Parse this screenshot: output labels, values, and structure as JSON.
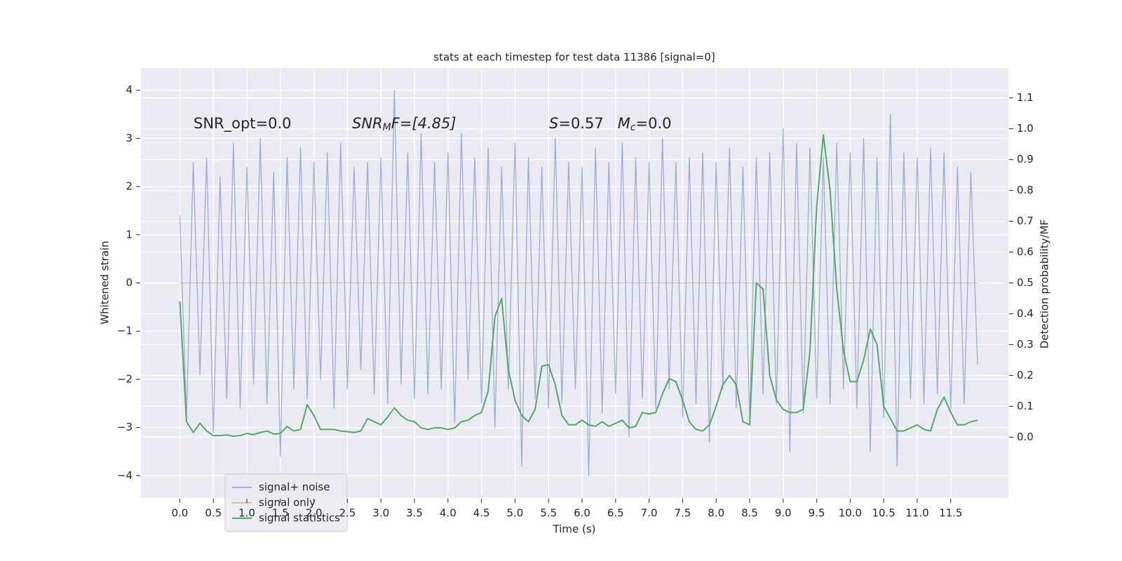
{
  "chart_data": {
    "type": "line",
    "title": "stats at each timestep for test data 11386 [signal=0]",
    "xlabel": "Time (s)",
    "ylabel": "Whitened strain",
    "y2label": "Detection probability/MF",
    "annotations": [
      [
        "SNR_opt=0.0"
      ],
      [
        "SNR",
        "M",
        "F=[4.85]"
      ],
      [
        "S",
        "=0.57",
        "M",
        "c",
        "=0.0"
      ]
    ],
    "xlim": [
      -0.58,
      12.36
    ],
    "ylim": [
      -4.46,
      4.46
    ],
    "y2lim": [
      -0.197,
      1.197
    ],
    "xticks": [
      {
        "value": 0,
        "label": "0.0"
      },
      0.5,
      {
        "value": 1,
        "label": "1.0"
      },
      1.5,
      {
        "value": 2,
        "label": "2.0"
      },
      2.5,
      {
        "value": 3,
        "label": "3.0"
      },
      3.5,
      {
        "value": 4,
        "label": "4.0"
      },
      4.5,
      {
        "value": 5,
        "label": "5.0"
      },
      5.5,
      {
        "value": 6,
        "label": "6.0"
      },
      6.5,
      {
        "value": 7,
        "label": "7.0"
      },
      7.5,
      {
        "value": 8,
        "label": "8.0"
      },
      8.5,
      {
        "value": 9,
        "label": "9.0"
      },
      9.5,
      {
        "value": 10,
        "label": "10.0"
      },
      10.5,
      {
        "value": 11,
        "label": "11.0"
      },
      11.5
    ],
    "yticks": [
      {
        "value": -4,
        "label": "−4"
      },
      {
        "value": -3,
        "label": "−3"
      },
      {
        "value": -2,
        "label": "−2"
      },
      {
        "value": -1,
        "label": "−1"
      },
      0,
      1,
      2,
      3,
      4
    ],
    "y2ticks": [
      {
        "value": 0,
        "label": "0.0"
      },
      0.1,
      0.2,
      0.3,
      0.4,
      0.5,
      0.6,
      0.7,
      0.8,
      0.9,
      {
        "value": 1,
        "label": "1.0"
      },
      1.1
    ],
    "grid": true,
    "legend": "lower left",
    "x": [
      0,
      0.1,
      0.2,
      0.3,
      0.4,
      0.5,
      0.6,
      0.7,
      0.8,
      0.9,
      1,
      1.1,
      1.2,
      1.3,
      1.4,
      1.5,
      1.6,
      1.7,
      1.8,
      1.9,
      2,
      2.1,
      2.2,
      2.3,
      2.4,
      2.5,
      2.6,
      2.7,
      2.8,
      2.9,
      3,
      3.1,
      3.2,
      3.3,
      3.4,
      3.5,
      3.6,
      3.7,
      3.8,
      3.9,
      4,
      4.1,
      4.2,
      4.3,
      4.4,
      4.5,
      4.6,
      4.7,
      4.8,
      4.9,
      5,
      5.1,
      5.2,
      5.3,
      5.4,
      5.5,
      5.6,
      5.7,
      5.8,
      5.9,
      6,
      6.1,
      6.2,
      6.3,
      6.4,
      6.5,
      6.6,
      6.7,
      6.8,
      6.9,
      7,
      7.1,
      7.2,
      7.3,
      7.4,
      7.5,
      7.6,
      7.7,
      7.8,
      7.9,
      8,
      8.1,
      8.2,
      8.3,
      8.4,
      8.5,
      8.6,
      8.7,
      8.8,
      8.9,
      9,
      9.1,
      9.2,
      9.3,
      9.4,
      9.5,
      9.6,
      9.7,
      9.8,
      9.9,
      10,
      10.1,
      10.2,
      10.3,
      10.4,
      10.5,
      10.6,
      10.7,
      10.8,
      10.9,
      11,
      11.1,
      11.2,
      11.3,
      11.4,
      11.5,
      11.6,
      11.7,
      11.8,
      11.9
    ],
    "series": [
      {
        "name": "signal+ noise",
        "color": "#4c72b0",
        "values": [
          1.4,
          -2.8,
          2.5,
          -1.9,
          2.6,
          -3.1,
          2.2,
          -2.4,
          2.9,
          -2.6,
          2.4,
          -2.1,
          3.0,
          -2.5,
          2.3,
          -3.6,
          2.6,
          -2.2,
          2.8,
          -2.4,
          2.5,
          -2.0,
          2.7,
          -2.6,
          2.9,
          -2.2,
          2.4,
          -1.8,
          2.5,
          -2.3,
          2.6,
          -2.5,
          4.0,
          -2.1,
          2.7,
          -2.4,
          3.1,
          -2.3,
          2.5,
          -2.2,
          2.7,
          -2.9,
          3.1,
          -2.0,
          2.6,
          -2.5,
          2.8,
          -3.0,
          2.4,
          -2.2,
          2.9,
          -3.8,
          2.6,
          -2.4,
          2.4,
          -2.6,
          3.0,
          -2.5,
          2.5,
          -2.2,
          2.4,
          -4.0,
          2.8,
          -2.7,
          2.5,
          -2.3,
          2.9,
          -3.2,
          2.6,
          -2.4,
          2.5,
          -2.6,
          3.0,
          -2.2,
          2.5,
          -2.8,
          2.6,
          -2.5,
          2.7,
          -3.3,
          2.5,
          -2.2,
          2.8,
          -2.6,
          2.4,
          -2.8,
          2.6,
          -2.3,
          2.7,
          -2.5,
          3.2,
          -3.5,
          2.9,
          -2.7,
          2.8,
          -2.4,
          2.6,
          -2.5,
          2.9,
          -2.2,
          2.7,
          -2.6,
          3.0,
          -3.5,
          2.6,
          -2.8,
          3.5,
          -3.8,
          2.7,
          -2.4,
          2.6,
          -2.5,
          2.8,
          -2.3,
          2.7,
          -2.6,
          2.4,
          -2.5,
          2.3,
          -1.7
        ]
      },
      {
        "name": "signal only",
        "color": "#dd8452",
        "values": [
          0,
          0,
          0,
          0,
          0,
          0,
          0,
          0,
          0,
          0,
          0,
          0,
          0,
          0,
          0,
          0,
          0,
          0,
          0,
          0,
          0,
          0,
          0,
          0,
          0,
          0,
          0,
          0,
          0,
          0,
          0,
          0,
          0,
          0,
          0,
          0,
          0,
          0,
          0,
          0,
          0,
          0,
          0,
          0,
          0,
          0,
          0,
          0,
          0,
          0,
          0,
          0,
          0,
          0,
          0,
          0,
          0,
          0,
          0,
          0,
          0,
          0,
          0,
          0,
          0,
          0,
          0,
          0,
          0,
          0,
          0,
          0,
          0,
          0,
          0,
          0,
          0,
          0,
          0,
          0,
          0,
          0,
          0,
          0,
          0,
          0,
          0,
          0,
          0,
          0,
          0,
          0,
          0,
          0,
          0,
          0,
          0,
          0,
          0,
          0,
          0,
          0,
          0,
          0,
          0,
          0,
          0,
          0,
          0,
          0,
          0,
          0,
          0,
          0,
          0,
          0,
          0,
          0,
          0,
          0
        ]
      },
      {
        "name": "signal statistics",
        "color": "#55a868",
        "axis": "y2",
        "values": [
          0.44,
          0.05,
          0.015,
          0.045,
          0.02,
          0.005,
          0.005,
          0.007,
          0.003,
          0.005,
          0.012,
          0.008,
          0.015,
          0.02,
          0.01,
          0.012,
          0.035,
          0.02,
          0.025,
          0.105,
          0.07,
          0.025,
          0.025,
          0.025,
          0.02,
          0.018,
          0.015,
          0.02,
          0.06,
          0.05,
          0.04,
          0.065,
          0.095,
          0.07,
          0.055,
          0.05,
          0.03,
          0.025,
          0.03,
          0.03,
          0.025,
          0.03,
          0.05,
          0.055,
          0.07,
          0.08,
          0.15,
          0.39,
          0.45,
          0.22,
          0.12,
          0.07,
          0.05,
          0.09,
          0.23,
          0.235,
          0.17,
          0.07,
          0.04,
          0.04,
          0.055,
          0.04,
          0.035,
          0.05,
          0.035,
          0.045,
          0.055,
          0.03,
          0.035,
          0.08,
          0.075,
          0.08,
          0.14,
          0.19,
          0.18,
          0.12,
          0.05,
          0.025,
          0.02,
          0.04,
          0.1,
          0.17,
          0.2,
          0.17,
          0.05,
          0.04,
          0.5,
          0.48,
          0.2,
          0.12,
          0.09,
          0.08,
          0.08,
          0.09,
          0.28,
          0.75,
          0.98,
          0.8,
          0.48,
          0.28,
          0.18,
          0.18,
          0.25,
          0.35,
          0.3,
          0.1,
          0.06,
          0.02,
          0.02,
          0.03,
          0.04,
          0.025,
          0.02,
          0.09,
          0.13,
          0.08,
          0.04,
          0.04,
          0.05,
          0.055
        ]
      }
    ]
  }
}
